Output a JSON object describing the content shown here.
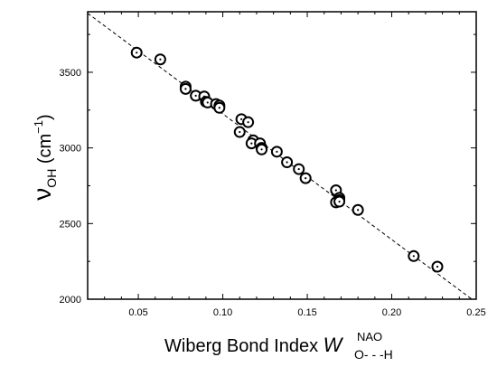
{
  "chart_data": {
    "type": "scatter",
    "title": "",
    "xlabel": {
      "main": "Wiberg Bond Index ",
      "symbol": "W",
      "superscript": "NAO",
      "subscript": "O- - -H"
    },
    "ylabel": {
      "symbol": "ν",
      "subscript": "OH",
      "unit_open": " (cm",
      "unit_power": "−1",
      "unit_close": ")"
    },
    "xlim": [
      0.02,
      0.25
    ],
    "ylim": [
      2000,
      3900
    ],
    "x_ticks": [
      0.05,
      0.1,
      0.15,
      0.2,
      0.25
    ],
    "x_tick_labels": [
      "0.05",
      "0.10",
      "0.15",
      "0.20",
      "0.25"
    ],
    "y_ticks": [
      2000,
      2500,
      3000,
      3500
    ],
    "y_tick_labels": [
      "2000",
      "2500",
      "3000",
      "3500"
    ],
    "grid": false,
    "fit_line": {
      "style": "dashed",
      "x": [
        0.02,
        0.248
      ],
      "y": [
        3890,
        1995
      ]
    },
    "series": [
      {
        "marker": "open-circle-with-dot",
        "points": [
          [
            0.049,
            3630
          ],
          [
            0.063,
            3585
          ],
          [
            0.078,
            3405
          ],
          [
            0.078,
            3390
          ],
          [
            0.084,
            3345
          ],
          [
            0.089,
            3340
          ],
          [
            0.09,
            3305
          ],
          [
            0.091,
            3300
          ],
          [
            0.096,
            3290
          ],
          [
            0.098,
            3280
          ],
          [
            0.098,
            3265
          ],
          [
            0.111,
            3190
          ],
          [
            0.115,
            3170
          ],
          [
            0.11,
            3105
          ],
          [
            0.118,
            3050
          ],
          [
            0.117,
            3030
          ],
          [
            0.122,
            3030
          ],
          [
            0.123,
            3000
          ],
          [
            0.123,
            2990
          ],
          [
            0.132,
            2975
          ],
          [
            0.138,
            2905
          ],
          [
            0.145,
            2860
          ],
          [
            0.149,
            2800
          ],
          [
            0.167,
            2720
          ],
          [
            0.169,
            2670
          ],
          [
            0.169,
            2655
          ],
          [
            0.167,
            2640
          ],
          [
            0.169,
            2645
          ],
          [
            0.18,
            2590
          ],
          [
            0.213,
            2285
          ],
          [
            0.227,
            2215
          ]
        ]
      }
    ]
  }
}
